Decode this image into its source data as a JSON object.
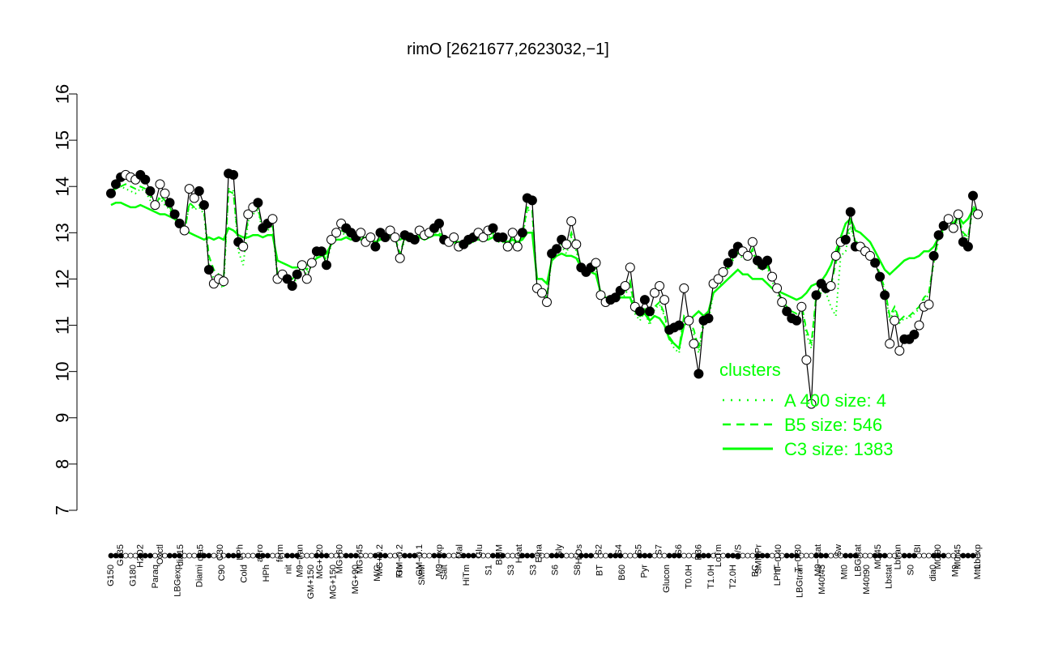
{
  "chart_data": {
    "type": "line",
    "title": "rimO [2621677,2623032,−1]",
    "xlabel": "",
    "ylabel": "",
    "ylim": [
      7,
      16
    ],
    "yticks": [
      7,
      8,
      9,
      10,
      11,
      12,
      13,
      14,
      15,
      16
    ],
    "grid": false,
    "legend_position": "right",
    "legend": {
      "title": "clusters",
      "entries": [
        {
          "label": "A 400 size: 4",
          "style": "dotted"
        },
        {
          "label": "B5 size: 546",
          "style": "dashed"
        },
        {
          "label": "C3 size: 1383",
          "style": "solid"
        }
      ]
    },
    "colors": {
      "clusters": "#00ff00",
      "line": "#000000",
      "marker_filled": "#000000",
      "marker_open": "#ffffff"
    },
    "x_labels_top": [
      "G135",
      "H2O2",
      "Oxctl",
      "dia15",
      "dia5",
      "C30",
      "LPh",
      "aero",
      "ferm",
      "M9−tran",
      "MG+120",
      "MG+60",
      "MG+45",
      "MG+0.2",
      "GM−0.2",
      "GM−0.1",
      "M9−exp",
      "Mal",
      "Glu",
      "BMM",
      "Heat",
      "Etha",
      "Gly",
      "HiOs",
      "S2",
      "S4",
      "S5",
      "S7",
      "S6",
      "B36",
      "LoTm",
      "G/S",
      "SMMPr",
      "T−0.40",
      "T−0.30",
      "M9−stat",
      "Sw",
      "LBGstat",
      "M0t45",
      "Lbtran",
      "BI",
      "M0t90",
      "M0t45",
      "Lbexp"
    ],
    "x_labels_bottom": [
      "G150",
      "G180",
      "Paraq",
      "LBGexp",
      "Diami",
      "C90",
      "Cold",
      "HPh",
      "nit",
      "GM+150",
      "MG+150",
      "MG+90",
      "M/G",
      "Fru",
      "SMM",
      "Salt",
      "HiTm",
      "S1",
      "S3",
      "S3",
      "S6",
      "S8",
      "BT",
      "B60",
      "Pyr",
      "Glucon",
      "T0.0H",
      "T1.0H",
      "T2.0H",
      "BC",
      "LPhT",
      "LBGtran",
      "M40t45",
      "Mt0",
      "M40t90",
      "Lbstat",
      "S0",
      "dia0",
      "M9",
      "Mt0"
    ],
    "series": [
      {
        "name": "",
        "values": [
          13.85,
          14.05,
          14.2,
          14.25,
          14.2,
          14.15,
          14.25,
          14.15,
          13.9,
          13.6,
          14.05,
          13.85,
          13.65,
          13.4,
          13.2,
          13.05,
          13.95,
          13.75,
          13.9,
          13.6,
          12.2,
          11.9,
          12.0,
          11.95,
          14.28,
          14.25,
          12.8,
          12.7,
          13.4,
          13.55,
          13.65,
          13.1,
          13.2,
          13.3,
          12.0,
          12.1,
          12.0,
          11.85,
          12.1,
          12.3,
          12.0,
          12.35,
          12.6,
          12.6,
          12.3,
          12.85,
          13.0,
          13.2,
          13.1,
          13.0,
          12.9,
          13.0,
          12.8,
          12.9,
          12.7,
          13.0,
          12.9,
          13.05,
          12.9,
          12.45,
          12.95,
          12.9,
          12.85,
          13.05,
          12.95,
          13.0,
          13.1,
          13.2,
          12.85,
          12.8,
          12.9,
          12.7,
          12.75,
          12.85,
          12.9,
          13.0,
          12.9,
          13.05,
          13.1,
          12.9,
          12.9,
          12.7,
          13.0,
          12.7,
          13.0,
          13.75,
          13.7,
          11.8,
          11.7,
          11.5,
          12.55,
          12.65,
          12.85,
          12.75,
          13.25,
          12.75,
          12.25,
          12.15,
          12.25,
          12.35,
          11.65,
          11.5,
          11.55,
          11.6,
          11.75,
          11.85,
          12.25,
          11.4,
          11.3,
          11.55,
          11.3,
          11.7,
          11.85,
          11.55,
          10.9,
          10.95,
          11.0,
          11.8,
          11.1,
          10.6,
          9.95,
          11.1,
          11.15,
          11.9,
          12.0,
          12.15,
          12.35,
          12.55,
          12.7,
          12.6,
          12.5,
          12.8,
          12.4,
          12.3,
          12.4,
          12.05,
          11.8,
          11.5,
          11.3,
          11.15,
          11.1,
          11.4,
          10.25,
          9.3,
          11.65,
          11.9,
          11.8,
          11.85,
          12.5,
          12.8,
          12.85,
          13.45,
          12.7,
          12.7,
          12.6,
          12.5,
          12.35,
          12.05,
          11.65,
          10.6,
          11.1,
          10.45,
          10.7,
          10.7,
          10.8,
          11.0,
          11.4,
          11.45,
          12.5,
          12.95,
          13.15,
          13.3,
          13.1,
          13.4,
          12.8,
          12.7,
          13.8,
          13.4
        ]
      },
      {
        "name": "C3 size: 1383",
        "style": "solid",
        "values": [
          13.6,
          13.65,
          13.65,
          13.6,
          13.55,
          13.55,
          13.6,
          13.55,
          13.5,
          13.45,
          13.4,
          13.4,
          13.35,
          13.3,
          13.2,
          13.15,
          13.0,
          12.95,
          12.9,
          12.85,
          12.9,
          12.85,
          12.9,
          12.85,
          13.1,
          13.05,
          12.95,
          12.9,
          12.9,
          12.95,
          12.95,
          12.9,
          12.95,
          12.95,
          12.4,
          12.35,
          12.3,
          12.25,
          12.25,
          12.3,
          12.3,
          12.35,
          12.45,
          12.5,
          12.55,
          12.75,
          12.85,
          12.85,
          12.9,
          12.85,
          12.9,
          12.85,
          12.9,
          12.85,
          12.8,
          12.85,
          12.85,
          12.9,
          12.85,
          12.85,
          12.9,
          12.9,
          12.85,
          12.9,
          12.85,
          12.9,
          12.95,
          12.95,
          12.85,
          12.8,
          12.8,
          12.8,
          12.8,
          12.8,
          12.85,
          12.85,
          12.85,
          12.85,
          12.9,
          12.85,
          12.85,
          12.8,
          12.85,
          12.8,
          12.85,
          13.0,
          13.0,
          12.0,
          12.0,
          11.9,
          12.4,
          12.5,
          12.55,
          12.5,
          12.5,
          12.45,
          12.25,
          12.2,
          12.15,
          12.1,
          11.7,
          11.6,
          11.55,
          11.55,
          11.6,
          11.6,
          11.6,
          11.3,
          11.2,
          11.25,
          11.1,
          11.2,
          11.15,
          11.0,
          10.7,
          10.6,
          10.5,
          11.0,
          11.1,
          11.2,
          11.3,
          11.2,
          11.3,
          11.7,
          11.8,
          11.9,
          12.0,
          12.1,
          12.2,
          12.1,
          12.1,
          12.0,
          12.0,
          12.0,
          11.9,
          11.8,
          11.75,
          11.7,
          11.65,
          11.6,
          11.55,
          11.6,
          11.7,
          11.85,
          11.9,
          11.95,
          12.1,
          12.3,
          12.6,
          12.9,
          13.2,
          13.3,
          13.05,
          13.0,
          12.9,
          12.8,
          12.6,
          12.4,
          12.2,
          12.1,
          12.2,
          12.3,
          12.4,
          12.45,
          12.45,
          12.5,
          12.6,
          12.6,
          12.7,
          12.9,
          13.1,
          13.3,
          13.2,
          13.35,
          13.2,
          13.3,
          13.5,
          13.4
        ]
      },
      {
        "name": "B5 size: 546",
        "style": "dashed",
        "values": [
          13.9,
          13.95,
          14.0,
          14.05,
          14.0,
          13.95,
          14.0,
          13.95,
          13.8,
          13.55,
          13.8,
          13.7,
          13.55,
          13.35,
          13.2,
          13.0,
          13.65,
          13.55,
          13.6,
          13.45,
          12.5,
          12.2,
          12.1,
          12.0,
          13.9,
          13.85,
          12.8,
          12.65,
          13.3,
          13.45,
          13.55,
          13.05,
          13.1,
          13.2,
          12.1,
          12.05,
          12.05,
          12.0,
          12.1,
          12.3,
          12.2,
          12.4,
          12.55,
          12.6,
          12.4,
          12.8,
          12.95,
          13.05,
          13.0,
          12.95,
          12.9,
          12.95,
          12.85,
          12.9,
          12.75,
          12.95,
          12.9,
          13.0,
          12.9,
          12.55,
          12.9,
          12.9,
          12.85,
          12.95,
          12.9,
          12.95,
          13.0,
          13.05,
          12.85,
          12.8,
          12.85,
          12.7,
          12.75,
          12.8,
          12.85,
          12.95,
          12.85,
          12.95,
          13.0,
          12.85,
          12.85,
          12.7,
          12.9,
          12.7,
          12.95,
          13.55,
          13.5,
          11.85,
          11.75,
          11.6,
          12.5,
          12.6,
          12.75,
          12.65,
          13.0,
          12.7,
          12.25,
          12.15,
          12.2,
          12.25,
          11.65,
          11.55,
          11.55,
          11.55,
          11.65,
          11.7,
          11.95,
          11.3,
          11.2,
          11.35,
          11.1,
          11.4,
          11.5,
          11.25,
          10.75,
          10.6,
          10.5,
          11.2,
          11.1,
          10.9,
          10.5,
          11.1,
          11.2,
          11.8,
          11.9,
          12.1,
          12.25,
          12.45,
          12.6,
          12.5,
          12.45,
          12.65,
          12.3,
          12.25,
          12.3,
          12.0,
          11.8,
          11.55,
          11.4,
          11.3,
          11.25,
          11.45,
          10.9,
          10.6,
          11.65,
          11.8,
          11.8,
          11.85,
          12.35,
          12.75,
          12.85,
          13.25,
          12.8,
          12.8,
          12.7,
          12.55,
          12.4,
          12.1,
          11.8,
          11.2,
          11.4,
          11.1,
          11.2,
          11.2,
          11.3,
          11.4,
          11.6,
          11.7,
          12.4,
          12.9,
          13.1,
          13.3,
          13.1,
          13.35,
          13.0,
          12.9,
          13.6,
          13.4
        ]
      },
      {
        "name": "A 400 size: 4",
        "style": "dotted",
        "values": [
          13.9,
          13.95,
          14.0,
          13.95,
          13.9,
          13.85,
          13.95,
          13.9,
          13.7,
          13.5,
          13.75,
          13.6,
          13.5,
          13.3,
          13.15,
          13.0,
          13.6,
          13.5,
          13.55,
          13.4,
          12.3,
          12.0,
          11.9,
          11.8,
          13.95,
          13.9,
          12.6,
          12.3,
          13.25,
          13.4,
          13.5,
          13.0,
          13.05,
          13.15,
          12.0,
          12.0,
          12.0,
          11.9,
          12.0,
          12.2,
          12.1,
          12.3,
          12.5,
          12.55,
          12.35,
          12.75,
          12.9,
          13.0,
          12.95,
          12.9,
          12.85,
          12.9,
          12.8,
          12.85,
          12.7,
          12.9,
          12.85,
          12.95,
          12.85,
          12.5,
          12.85,
          12.85,
          12.8,
          12.9,
          12.85,
          12.9,
          12.95,
          13.0,
          12.8,
          12.75,
          12.8,
          12.65,
          12.7,
          12.75,
          12.8,
          12.9,
          12.8,
          12.9,
          12.95,
          12.8,
          12.8,
          12.65,
          12.85,
          12.65,
          12.9,
          13.5,
          13.45,
          11.8,
          11.7,
          11.55,
          12.45,
          12.55,
          12.7,
          12.55,
          12.9,
          12.6,
          12.2,
          12.1,
          12.15,
          12.2,
          11.6,
          11.5,
          11.5,
          11.5,
          11.6,
          11.65,
          11.9,
          11.25,
          11.1,
          11.3,
          11.0,
          11.35,
          11.45,
          11.2,
          10.7,
          10.5,
          10.4,
          11.1,
          11.0,
          10.8,
          10.4,
          11.0,
          11.1,
          11.7,
          11.8,
          12.0,
          12.2,
          12.4,
          12.55,
          12.45,
          12.4,
          12.6,
          12.25,
          12.2,
          12.25,
          11.95,
          11.7,
          11.45,
          11.3,
          11.2,
          11.15,
          11.35,
          10.8,
          10.5,
          11.55,
          11.7,
          11.7,
          11.4,
          11.2,
          12.5,
          12.6,
          13.15,
          12.75,
          12.75,
          12.65,
          12.5,
          12.35,
          12.05,
          11.75,
          11.1,
          11.35,
          11.05,
          11.15,
          11.15,
          11.25,
          11.35,
          11.55,
          11.65,
          12.35,
          12.85,
          13.05,
          13.25,
          13.05,
          13.3,
          12.95,
          12.85,
          13.55,
          13.35
        ]
      }
    ]
  }
}
